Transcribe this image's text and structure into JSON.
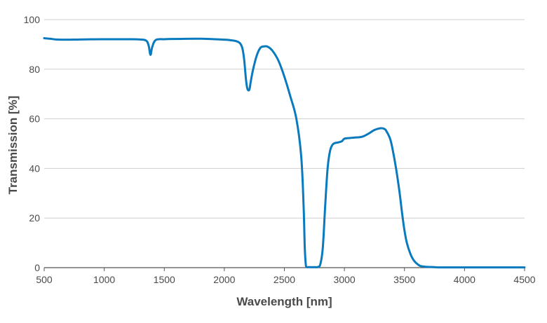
{
  "chart_data": {
    "type": "line",
    "title": "",
    "xlabel": "Wavelength [nm]",
    "ylabel": "Transmission [%]",
    "xlim": [
      500,
      4500
    ],
    "ylim": [
      0,
      100
    ],
    "xticks": [
      500,
      1000,
      1500,
      2000,
      2500,
      3000,
      3500,
      4000,
      4500
    ],
    "yticks": [
      0,
      20,
      40,
      60,
      80,
      100
    ],
    "grid": "horizontal",
    "colors": {
      "series": "#0a7abf",
      "grid": "#cfcfcf",
      "axis": "#555555",
      "text": "#4a4a4a"
    },
    "series": [
      {
        "name": "Transmission",
        "x": [
          500,
          550,
          600,
          700,
          800,
          1000,
          1200,
          1300,
          1350,
          1370,
          1385,
          1400,
          1430,
          1500,
          1600,
          1800,
          2000,
          2050,
          2100,
          2130,
          2150,
          2165,
          2180,
          2190,
          2200,
          2210,
          2220,
          2240,
          2270,
          2300,
          2330,
          2360,
          2400,
          2450,
          2500,
          2550,
          2600,
          2640,
          2660,
          2670,
          2680,
          2690,
          2695,
          2700,
          2750,
          2780,
          2800,
          2820,
          2840,
          2860,
          2880,
          2900,
          2920,
          2950,
          2980,
          3000,
          3050,
          3100,
          3150,
          3200,
          3250,
          3300,
          3330,
          3350,
          3380,
          3400,
          3430,
          3460,
          3480,
          3500,
          3520,
          3550,
          3580,
          3620,
          3650,
          3700,
          3750,
          3800,
          4000,
          4200,
          4400,
          4500
        ],
        "y": [
          92.5,
          92.3,
          92.0,
          91.9,
          92.0,
          92.1,
          92.1,
          92.0,
          91.5,
          89.5,
          85.8,
          89.0,
          91.8,
          92.1,
          92.2,
          92.3,
          91.9,
          91.7,
          91.3,
          90.5,
          88.5,
          84.0,
          76.0,
          72.5,
          71.5,
          72.0,
          75.0,
          80.0,
          85.5,
          88.6,
          89.2,
          89.1,
          87.5,
          83.5,
          77.0,
          69.0,
          60.0,
          45.0,
          25.0,
          8.0,
          0.6,
          0.2,
          0.2,
          0.2,
          0.2,
          0.3,
          1.5,
          8.0,
          25.0,
          40.0,
          47.0,
          49.5,
          50.2,
          50.5,
          51.0,
          52.0,
          52.3,
          52.5,
          52.8,
          54.0,
          55.5,
          56.2,
          56.0,
          55.0,
          52.0,
          48.0,
          40.0,
          30.0,
          22.0,
          15.0,
          10.0,
          5.5,
          2.8,
          1.0,
          0.5,
          0.3,
          0.2,
          0.1,
          0.1,
          0.1,
          0.1,
          0.1
        ]
      }
    ]
  }
}
